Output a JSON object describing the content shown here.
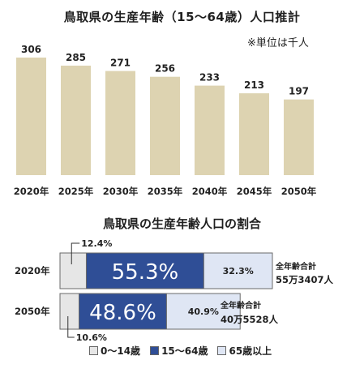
{
  "titles": {
    "population_chart": "鳥取県の生産年齢（15〜64歳）人口推計",
    "unit_note": "※単位は千人",
    "ratio_chart": "鳥取県の生産年齢人口の割合"
  },
  "colors": {
    "bar": "#ddd3b1",
    "young": "#e6e6e6",
    "working": "#2f4e96",
    "elderly": "#dfe6f4",
    "border": "#6a6a6a"
  },
  "chart_data": [
    {
      "type": "bar",
      "title": "鳥取県の生産年齢（15〜64歳）人口推計",
      "unit": "※単位は千人",
      "categories": [
        "2020年",
        "2025年",
        "2030年",
        "2035年",
        "2040年",
        "2045年",
        "2050年"
      ],
      "values": [
        306,
        285,
        271,
        256,
        233,
        213,
        197
      ],
      "ylim": [
        0,
        306
      ],
      "grid": false,
      "legend": "none"
    },
    {
      "type": "bar",
      "stacked": true,
      "orientation": "horizontal",
      "title": "鳥取県の生産年齢人口の割合",
      "categories": [
        "2020年",
        "2050年"
      ],
      "series": [
        {
          "name": "0〜14歳",
          "values": [
            12.4,
            10.6
          ],
          "labels": [
            "12.4%",
            "10.6%"
          ]
        },
        {
          "name": "15〜64歳",
          "values": [
            55.3,
            48.6
          ],
          "labels": [
            "55.3%",
            "48.6%"
          ]
        },
        {
          "name": "65歳以上",
          "values": [
            32.3,
            40.9
          ],
          "labels": [
            "32.3%",
            "40.9%"
          ]
        }
      ],
      "totals": [
        {
          "label": "全年齢合計",
          "value": "55万3407人"
        },
        {
          "label": "全年齢合計",
          "value": "40万5528人"
        }
      ],
      "legend": "bottom"
    }
  ]
}
